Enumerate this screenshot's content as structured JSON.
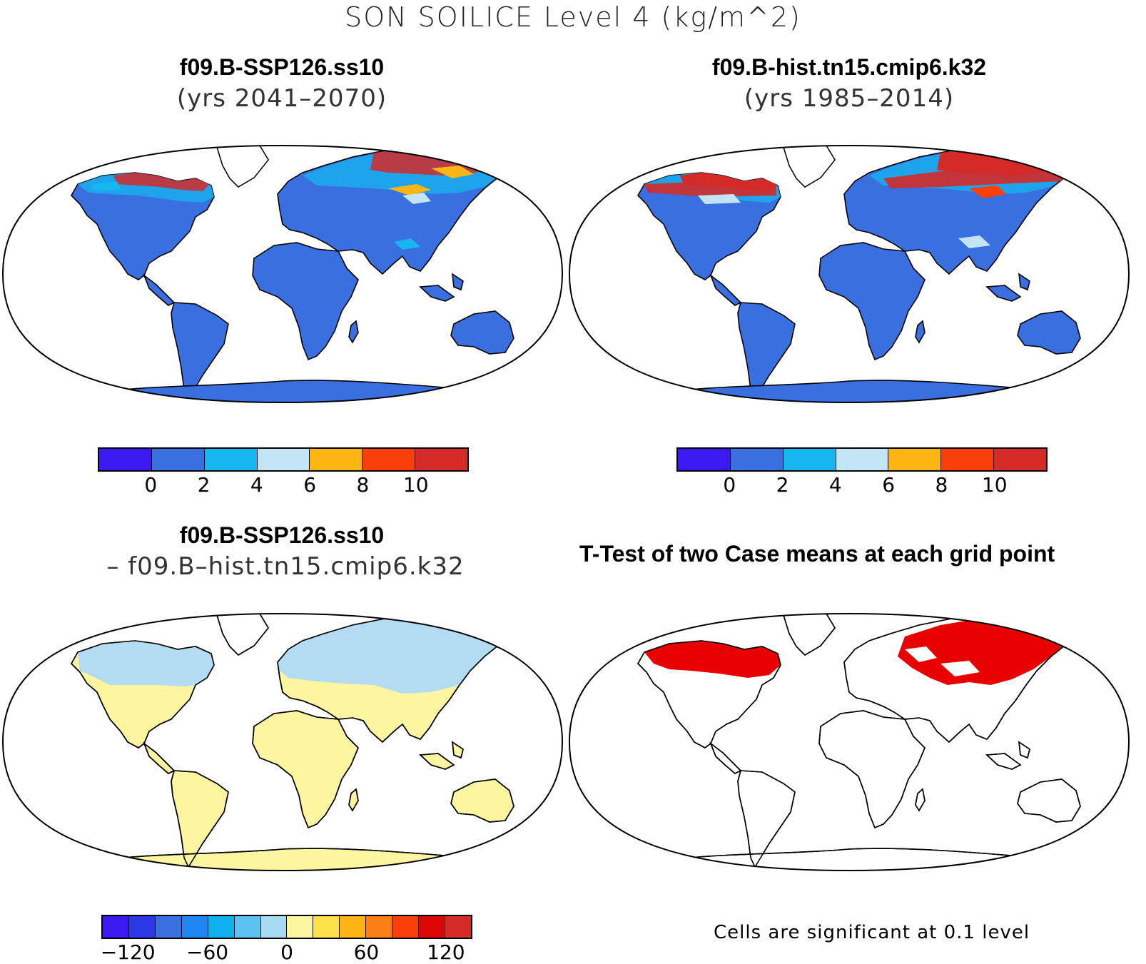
{
  "title": "SON SOILICE Level 4 (kg/m^2)",
  "panels": {
    "top_left": {
      "title": "f09.B-SSP126.ss10",
      "subtitle": "(yrs 2041–2070)"
    },
    "top_right": {
      "title": "f09.B-hist.tn15.cmip6.k32",
      "subtitle": "(yrs 1985–2014)"
    },
    "bottom_left": {
      "title": "f09.B-SSP126.ss10",
      "subtitle": "– f09.B–hist.tn15.cmip6.k32"
    },
    "bottom_right": {
      "title": "T-Test of two Case means at each grid point",
      "note": "Cells are significant at 0.1 level"
    }
  },
  "colorbars": {
    "abs": {
      "colors": [
        "#3a1af0",
        "#3a6fe0",
        "#16b6f0",
        "#c3e4f4",
        "#fdb512",
        "#fb3f0a",
        "#d42a28"
      ],
      "ticks": [
        "0",
        "2",
        "4",
        "6",
        "8",
        "10"
      ]
    },
    "diff": {
      "colors": [
        "#3a1af0",
        "#2a38e8",
        "#3a6fe0",
        "#1f86f2",
        "#0fb0ee",
        "#5cc3f0",
        "#a8daf2",
        "#fdf5a0",
        "#fde04a",
        "#fdb515",
        "#fb8013",
        "#fa3f0a",
        "#dd0606",
        "#d42a28"
      ],
      "ticks": [
        "−120",
        "−60",
        "0",
        "60",
        "120"
      ]
    }
  },
  "colors": {
    "land_abs": "#3a6fe0",
    "land_diff_south": "#fdf5a0",
    "land_diff_north": "#b3dcf2",
    "significant": "#e80000",
    "high_ice": "#d42a28"
  }
}
